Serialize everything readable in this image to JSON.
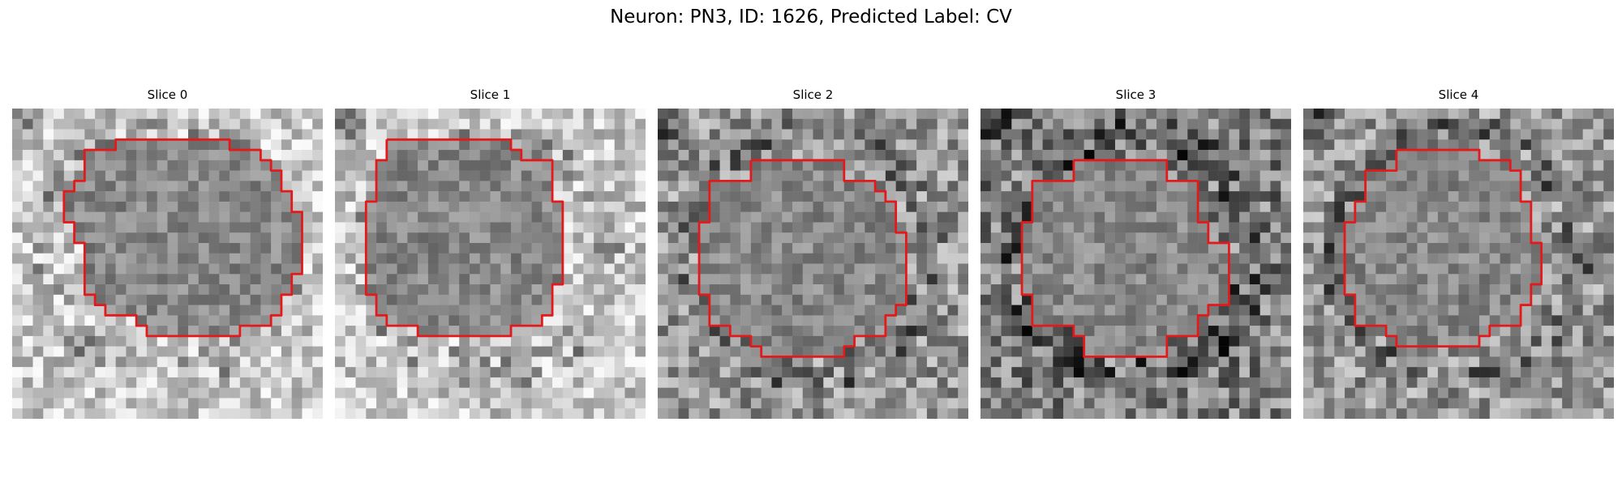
{
  "figure": {
    "title": "Neuron: PN3, ID: 1626, Predicted Label: CV",
    "outline_color": "#e31a1c",
    "colormap": "grayscale",
    "panels": [
      {
        "title": "Slice 0",
        "background_tone": "bright",
        "outline": [
          [
            11,
            3
          ],
          [
            21,
            3
          ],
          [
            21,
            4
          ],
          [
            24,
            4
          ],
          [
            24,
            5
          ],
          [
            25,
            5
          ],
          [
            25,
            6
          ],
          [
            26,
            6
          ],
          [
            26,
            8
          ],
          [
            27,
            8
          ],
          [
            27,
            10
          ],
          [
            28,
            10
          ],
          [
            28,
            13
          ],
          [
            28,
            16
          ],
          [
            27,
            16
          ],
          [
            27,
            18
          ],
          [
            26,
            18
          ],
          [
            26,
            19
          ],
          [
            26,
            20
          ],
          [
            25,
            20
          ],
          [
            25,
            21
          ],
          [
            22,
            21
          ],
          [
            22,
            22
          ],
          [
            13,
            22
          ],
          [
            13,
            21
          ],
          [
            12,
            21
          ],
          [
            12,
            20
          ],
          [
            9,
            20
          ],
          [
            9,
            19
          ],
          [
            8,
            19
          ],
          [
            8,
            18
          ],
          [
            7,
            18
          ],
          [
            7,
            16
          ],
          [
            7,
            13
          ],
          [
            6,
            13
          ],
          [
            6,
            11
          ],
          [
            5,
            11
          ],
          [
            5,
            8
          ],
          [
            6,
            8
          ],
          [
            6,
            7
          ],
          [
            7,
            7
          ],
          [
            7,
            5
          ],
          [
            7,
            4
          ],
          [
            10,
            4
          ],
          [
            10,
            3
          ],
          [
            11,
            3
          ]
        ]
      },
      {
        "title": "Slice 1",
        "background_tone": "bright",
        "outline": [
          [
            5,
            3
          ],
          [
            17,
            3
          ],
          [
            17,
            4
          ],
          [
            18,
            4
          ],
          [
            18,
            5
          ],
          [
            21,
            5
          ],
          [
            21,
            6
          ],
          [
            21,
            9
          ],
          [
            22,
            9
          ],
          [
            22,
            17
          ],
          [
            21,
            17
          ],
          [
            21,
            18
          ],
          [
            21,
            20
          ],
          [
            20,
            20
          ],
          [
            20,
            21
          ],
          [
            17,
            21
          ],
          [
            17,
            22
          ],
          [
            8,
            22
          ],
          [
            8,
            21
          ],
          [
            5,
            21
          ],
          [
            5,
            20
          ],
          [
            4,
            20
          ],
          [
            4,
            18
          ],
          [
            3,
            18
          ],
          [
            3,
            9
          ],
          [
            4,
            9
          ],
          [
            4,
            5
          ],
          [
            5,
            5
          ],
          [
            5,
            3
          ]
        ]
      },
      {
        "title": "Slice 2",
        "background_tone": "medium",
        "outline": [
          [
            9,
            5
          ],
          [
            18,
            5
          ],
          [
            18,
            7
          ],
          [
            21,
            7
          ],
          [
            21,
            8
          ],
          [
            22,
            8
          ],
          [
            22,
            9
          ],
          [
            23,
            9
          ],
          [
            23,
            12
          ],
          [
            24,
            12
          ],
          [
            24,
            13
          ],
          [
            24,
            19
          ],
          [
            23,
            19
          ],
          [
            23,
            20
          ],
          [
            22,
            20
          ],
          [
            22,
            22
          ],
          [
            19,
            22
          ],
          [
            19,
            23
          ],
          [
            18,
            23
          ],
          [
            18,
            24
          ],
          [
            10,
            24
          ],
          [
            10,
            23
          ],
          [
            9,
            23
          ],
          [
            9,
            22
          ],
          [
            7,
            22
          ],
          [
            7,
            21
          ],
          [
            5,
            21
          ],
          [
            5,
            18
          ],
          [
            4,
            18
          ],
          [
            4,
            11
          ],
          [
            5,
            11
          ],
          [
            5,
            7
          ],
          [
            9,
            7
          ],
          [
            9,
            5
          ]
        ]
      },
      {
        "title": "Slice 3",
        "background_tone": "dark",
        "outline": [
          [
            9,
            5
          ],
          [
            18,
            5
          ],
          [
            18,
            7
          ],
          [
            21,
            7
          ],
          [
            21,
            11
          ],
          [
            22,
            11
          ],
          [
            22,
            13
          ],
          [
            24,
            13
          ],
          [
            24,
            19
          ],
          [
            22,
            19
          ],
          [
            22,
            20
          ],
          [
            21,
            20
          ],
          [
            21,
            22
          ],
          [
            18,
            22
          ],
          [
            18,
            24
          ],
          [
            10,
            24
          ],
          [
            10,
            22
          ],
          [
            9,
            22
          ],
          [
            9,
            21
          ],
          [
            5,
            21
          ],
          [
            5,
            18
          ],
          [
            4,
            18
          ],
          [
            4,
            11
          ],
          [
            5,
            11
          ],
          [
            5,
            7
          ],
          [
            9,
            7
          ],
          [
            9,
            5
          ]
        ]
      },
      {
        "title": "Slice 4",
        "background_tone": "medium",
        "outline": [
          [
            9,
            4
          ],
          [
            17,
            4
          ],
          [
            17,
            5
          ],
          [
            20,
            5
          ],
          [
            20,
            6
          ],
          [
            21,
            6
          ],
          [
            21,
            9
          ],
          [
            22,
            9
          ],
          [
            22,
            12
          ],
          [
            22,
            13
          ],
          [
            23,
            13
          ],
          [
            23,
            14
          ],
          [
            23,
            17
          ],
          [
            22,
            17
          ],
          [
            22,
            19
          ],
          [
            21,
            19
          ],
          [
            21,
            21
          ],
          [
            18,
            21
          ],
          [
            18,
            22
          ],
          [
            17,
            22
          ],
          [
            17,
            23
          ],
          [
            9,
            23
          ],
          [
            9,
            22
          ],
          [
            8,
            22
          ],
          [
            8,
            21
          ],
          [
            5,
            21
          ],
          [
            5,
            18
          ],
          [
            4,
            18
          ],
          [
            4,
            11
          ],
          [
            5,
            11
          ],
          [
            5,
            9
          ],
          [
            6,
            9
          ],
          [
            6,
            6
          ],
          [
            9,
            6
          ],
          [
            9,
            4
          ]
        ]
      }
    ]
  }
}
